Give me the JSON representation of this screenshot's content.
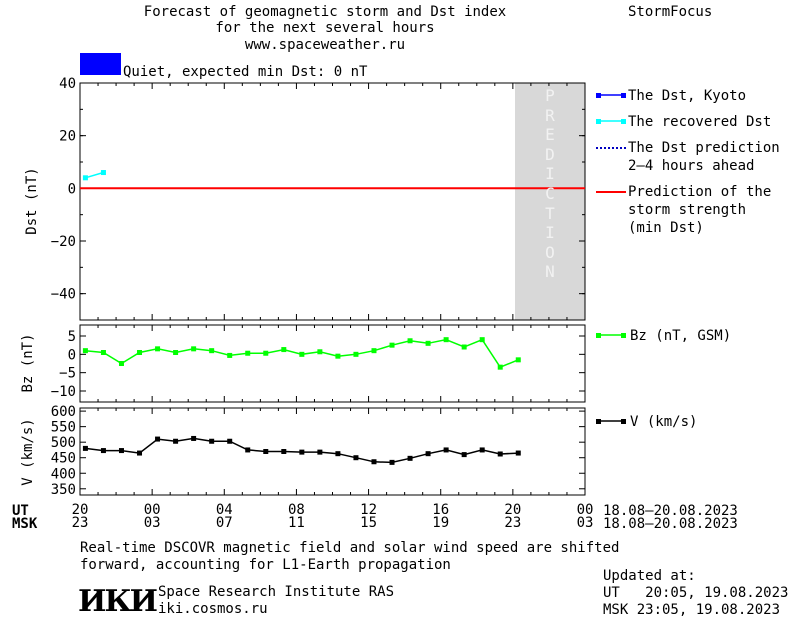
{
  "header": {
    "title_line1": "Forecast of geomagnetic storm and Dst index",
    "title_line2": "for the next several hours",
    "website": "www.spaceweather.ru",
    "brand": "StormFocus"
  },
  "status": {
    "text": "Quiet, expected min Dst: 0 nT",
    "color": "#0000ff"
  },
  "prediction_label": "PREDICTION",
  "legend": {
    "dst_kyoto": "The Dst, Kyoto",
    "recovered_dst": "The recovered Dst",
    "dst_prediction_1": "The Dst prediction",
    "dst_prediction_2": "2–4 hours ahead",
    "storm_strength_1": "Prediction of the",
    "storm_strength_2": "storm strength",
    "storm_strength_3": "(min Dst)",
    "bz": "Bz (nT, GSM)",
    "v": "V (km/s)"
  },
  "time_axis": {
    "ut_label": "UT",
    "msk_label": "MSK",
    "ut_ticks": [
      "20",
      "00",
      "04",
      "08",
      "12",
      "16",
      "20",
      "00"
    ],
    "msk_ticks": [
      "23",
      "03",
      "07",
      "11",
      "15",
      "19",
      "23",
      "03"
    ],
    "ut_range": "18.08–20.08.2023",
    "msk_range": "18.08–20.08.2023"
  },
  "chart_data": [
    {
      "type": "line",
      "panel": "dst",
      "ylabel": "Dst (nT)",
      "ylim": [
        -50,
        40
      ],
      "yticks": [
        -40,
        -20,
        0,
        20,
        40
      ],
      "x_range_hours": [
        0,
        28
      ],
      "prediction_start_hour": 23.3,
      "series": [
        {
          "name": "The recovered Dst",
          "color": "#00ffff",
          "x": [
            0.3,
            1.3
          ],
          "y": [
            4,
            6
          ]
        },
        {
          "name": "Prediction of the storm strength (min Dst)",
          "color": "#ff0000",
          "x": [
            0,
            28
          ],
          "y": [
            0,
            0
          ]
        }
      ]
    },
    {
      "type": "line",
      "panel": "bz",
      "ylabel": "Bz (nT)",
      "ylim": [
        -13,
        8
      ],
      "yticks": [
        -10,
        -5,
        0,
        5
      ],
      "series": [
        {
          "name": "Bz (nT, GSM)",
          "color": "#00ff00",
          "x": [
            0.3,
            1.3,
            2.3,
            3.3,
            4.3,
            5.3,
            6.3,
            7.3,
            8.3,
            9.3,
            10.3,
            11.3,
            12.3,
            13.3,
            14.3,
            15.3,
            16.3,
            17.3,
            18.3,
            19.3,
            20.3,
            21.3,
            22.3,
            23.3,
            24.3
          ],
          "y": [
            1,
            0.5,
            -2.5,
            0.5,
            1.5,
            0.5,
            1.5,
            1,
            -0.3,
            0.3,
            0.3,
            1.3,
            0,
            0.7,
            -0.5,
            0,
            1,
            2.5,
            3.7,
            3,
            4,
            2,
            4,
            -3.5,
            -1.5
          ]
        }
      ]
    },
    {
      "type": "line",
      "panel": "v",
      "ylabel": "V (km/s)",
      "ylim": [
        330,
        610
      ],
      "yticks": [
        350,
        400,
        450,
        500,
        550,
        600
      ],
      "series": [
        {
          "name": "V (km/s)",
          "color": "#000000",
          "x": [
            0.3,
            1.3,
            2.3,
            3.3,
            4.3,
            5.3,
            6.3,
            7.3,
            8.3,
            9.3,
            10.3,
            11.3,
            12.3,
            13.3,
            14.3,
            15.3,
            16.3,
            17.3,
            18.3,
            19.3,
            20.3,
            21.3,
            22.3,
            23.3,
            24.3
          ],
          "y": [
            480,
            473,
            473,
            465,
            510,
            503,
            512,
            503,
            503,
            475,
            470,
            470,
            468,
            468,
            463,
            450,
            437,
            435,
            448,
            463,
            475,
            460,
            475,
            462,
            465
          ]
        }
      ]
    }
  ],
  "footer": {
    "note_line1": "Real-time DSCOVR magnetic field and solar wind speed are shifted",
    "note_line2": "forward, accounting for L1-Earth propagation",
    "logo": "ИКИ",
    "institute": "Space Research Institute RAS",
    "institute_url": "iki.cosmos.ru",
    "updated_label": "Updated at:",
    "updated_ut": "UT   20:05, 19.08.2023",
    "updated_msk": "MSK 23:05, 19.08.2023"
  }
}
